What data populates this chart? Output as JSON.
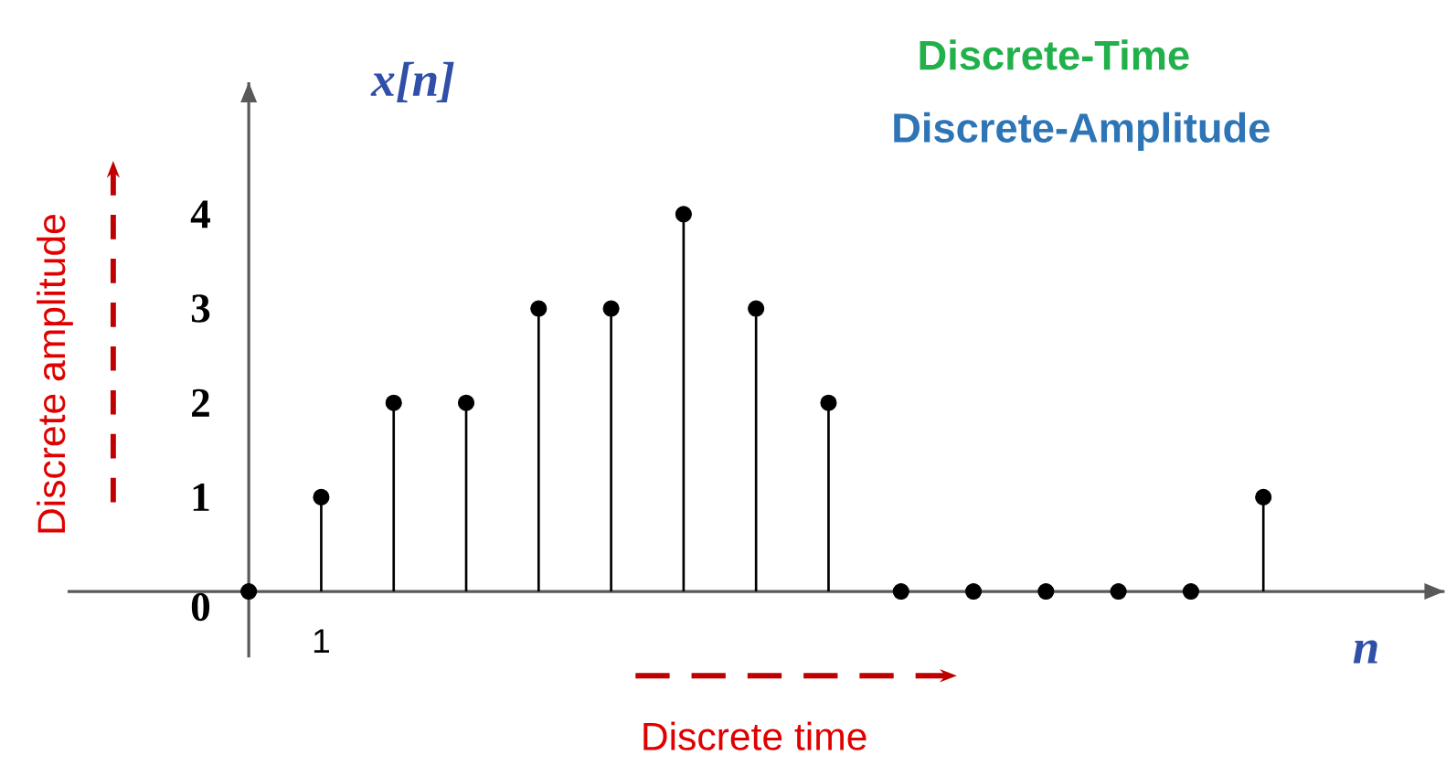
{
  "chart_data": {
    "type": "lollipop",
    "title": "Discrete-Time",
    "subtitle": "Discrete-Amplitude",
    "xlabel": "n",
    "ylabel": "x[n]",
    "categories": [
      null,
      null,
      null,
      "1",
      null,
      null,
      null,
      null,
      null,
      null,
      null,
      null,
      null,
      null,
      null,
      null,
      null,
      null,
      null
    ],
    "series": [
      {
        "color": "#000000",
        "values": [
          null,
          null,
          0,
          1,
          2,
          2,
          3,
          3,
          4,
          3,
          2,
          0,
          0,
          0,
          0,
          0,
          1,
          null,
          null
        ]
      }
    ],
    "ylim": [
      -0.7,
      5.4
    ],
    "yticks": [
      0,
      1,
      2,
      3,
      4
    ],
    "marker": "circle",
    "legend": false,
    "annotations": [
      "Discrete amplitude",
      "Discrete time"
    ]
  }
}
